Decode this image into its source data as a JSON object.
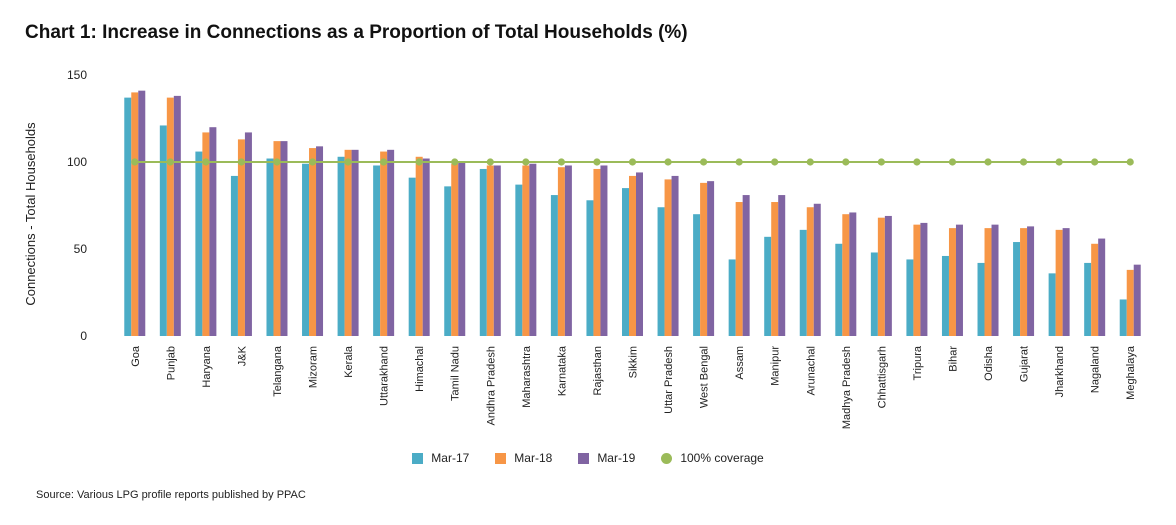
{
  "title": "Chart 1: Increase in Connections as a Proportion of Total Households (%)",
  "source": "Source: Various LPG profile reports published by PPAC",
  "chart_data": {
    "type": "bar",
    "title": "Chart 1: Increase in Connections as a Proportion of Total Households (%)",
    "xlabel": "",
    "ylabel": "Connections - Total Households",
    "y_ticks": [
      0,
      50,
      100,
      150
    ],
    "y_tick_labels": [
      "0",
      "50",
      "100",
      "150"
    ],
    "ylim": [
      0,
      150
    ],
    "grid": false,
    "legend_position": "bottom-center",
    "categories": [
      "Goa",
      "Punjab",
      "Haryana",
      "J&K",
      "Telangana",
      "Mizoram",
      "Kerala",
      "Uttarakhand",
      "Himachal",
      "Tamil Nadu",
      "Andhra Pradesh",
      "Maharashtra",
      "Karnataka",
      "Rajasthan",
      "Sikkim",
      "Uttar Pradesh",
      "West Bengal",
      "Assam",
      "Manipur",
      "Arunachal",
      "Madhya Pradesh",
      "Chhattisgarh",
      "Tripura",
      "Bihar",
      "Odisha",
      "Gujarat",
      "Jharkhand",
      "Nagaland",
      "Meghalaya"
    ],
    "series": [
      {
        "name": "Mar-17",
        "type": "bar",
        "color": "#4bacc6",
        "values": [
          137,
          121,
          106,
          92,
          102,
          99,
          103,
          98,
          91,
          86,
          96,
          87,
          81,
          78,
          85,
          74,
          70,
          44,
          57,
          61,
          53,
          48,
          44,
          46,
          42,
          54,
          36,
          42,
          21
        ]
      },
      {
        "name": "Mar-18",
        "type": "bar",
        "color": "#f79646",
        "values": [
          140,
          137,
          117,
          113,
          112,
          108,
          107,
          106,
          103,
          99,
          98,
          98,
          97,
          96,
          92,
          90,
          88,
          77,
          77,
          74,
          70,
          68,
          64,
          62,
          62,
          62,
          61,
          53,
          38
        ]
      },
      {
        "name": "Mar-19",
        "type": "bar",
        "color": "#8064a2",
        "values": [
          141,
          138,
          120,
          117,
          112,
          109,
          107,
          107,
          102,
          100,
          98,
          99,
          98,
          98,
          94,
          92,
          89,
          81,
          81,
          76,
          71,
          69,
          65,
          64,
          64,
          63,
          62,
          56,
          41
        ]
      },
      {
        "name": "100% coverage",
        "type": "line",
        "color": "#9bbb59",
        "values": [
          100,
          100,
          100,
          100,
          100,
          100,
          100,
          100,
          100,
          100,
          100,
          100,
          100,
          100,
          100,
          100,
          100,
          100,
          100,
          100,
          100,
          100,
          100,
          100,
          100,
          100,
          100,
          100,
          100
        ]
      }
    ]
  }
}
